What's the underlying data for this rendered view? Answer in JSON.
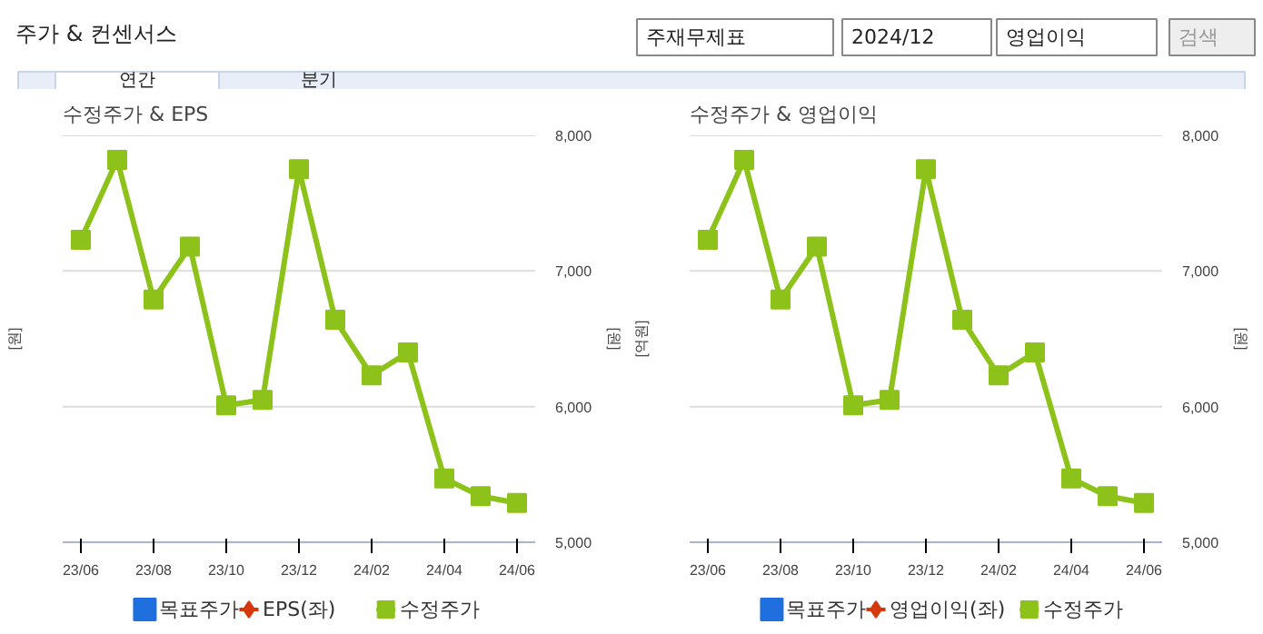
{
  "chart_data": [
    {
      "type": "other",
      "title": "주가 & 컨센서스",
      "annotations": [
        "주재무제표",
        "2024/12",
        "영업이익",
        "검색",
        "연간",
        "분기"
      ]
    },
    {
      "type": "line",
      "title": "수정주가 & EPS",
      "ylabel": "[원]",
      "y2label": "[원]",
      "categories": [
        "23/06",
        null,
        "23/08",
        null,
        "23/10",
        null,
        "23/12",
        null,
        "24/02",
        null,
        "24/04",
        null,
        "24/06"
      ],
      "series": [
        {
          "name": "목표주가",
          "color": "#1f6fde",
          "type": "scatter",
          "marker": "square",
          "values": [
            null,
            null,
            null,
            null,
            null,
            null,
            null,
            null,
            null,
            null,
            null,
            null,
            null
          ]
        },
        {
          "name": "EPS(좌)",
          "color": "#d4380d",
          "marker": "diamond",
          "values": [
            null,
            null,
            null,
            null,
            null,
            null,
            null,
            null,
            null,
            null,
            null,
            null,
            null
          ]
        },
        {
          "name": "수정주가",
          "color": "#8cc21a",
          "axis": "y2",
          "marker": "square",
          "values": [
            7230,
            7820,
            6790,
            7180,
            6010,
            6050,
            7750,
            6640,
            6230,
            6400,
            5470,
            5340,
            5290
          ]
        }
      ],
      "y2lim": [
        5000,
        8000
      ],
      "y2ticks": [
        {
          "value": 5000,
          "label": "5,000"
        },
        {
          "value": 6000,
          "label": "6,000"
        },
        {
          "value": 7000,
          "label": "7,000"
        },
        {
          "value": 8000,
          "label": "8,000"
        }
      ],
      "grid": "y",
      "legend": "bottom"
    },
    {
      "type": "line",
      "title": "수정주가 & 영업이익",
      "ylabel": "[억원]",
      "y2label": "[원]",
      "categories": [
        "23/06",
        null,
        "23/08",
        null,
        "23/10",
        null,
        "23/12",
        null,
        "24/02",
        null,
        "24/04",
        null,
        "24/06"
      ],
      "series": [
        {
          "name": "목표주가",
          "color": "#1f6fde",
          "type": "scatter",
          "marker": "square",
          "values": [
            null,
            null,
            null,
            null,
            null,
            null,
            null,
            null,
            null,
            null,
            null,
            null,
            null
          ]
        },
        {
          "name": "영업이익(좌)",
          "color": "#d4380d",
          "marker": "diamond",
          "values": [
            null,
            null,
            null,
            null,
            null,
            null,
            null,
            null,
            null,
            null,
            null,
            null,
            null
          ]
        },
        {
          "name": "수정주가",
          "color": "#8cc21a",
          "axis": "y2",
          "marker": "square",
          "values": [
            7230,
            7820,
            6790,
            7180,
            6010,
            6050,
            7750,
            6640,
            6230,
            6400,
            5470,
            5340,
            5290
          ]
        }
      ],
      "y2lim": [
        5000,
        8000
      ],
      "y2ticks": [
        {
          "value": 5000,
          "label": "5,000"
        },
        {
          "value": 6000,
          "label": "6,000"
        },
        {
          "value": 7000,
          "label": "7,000"
        },
        {
          "value": 8000,
          "label": "8,000"
        }
      ],
      "grid": "y",
      "legend": "bottom"
    }
  ]
}
